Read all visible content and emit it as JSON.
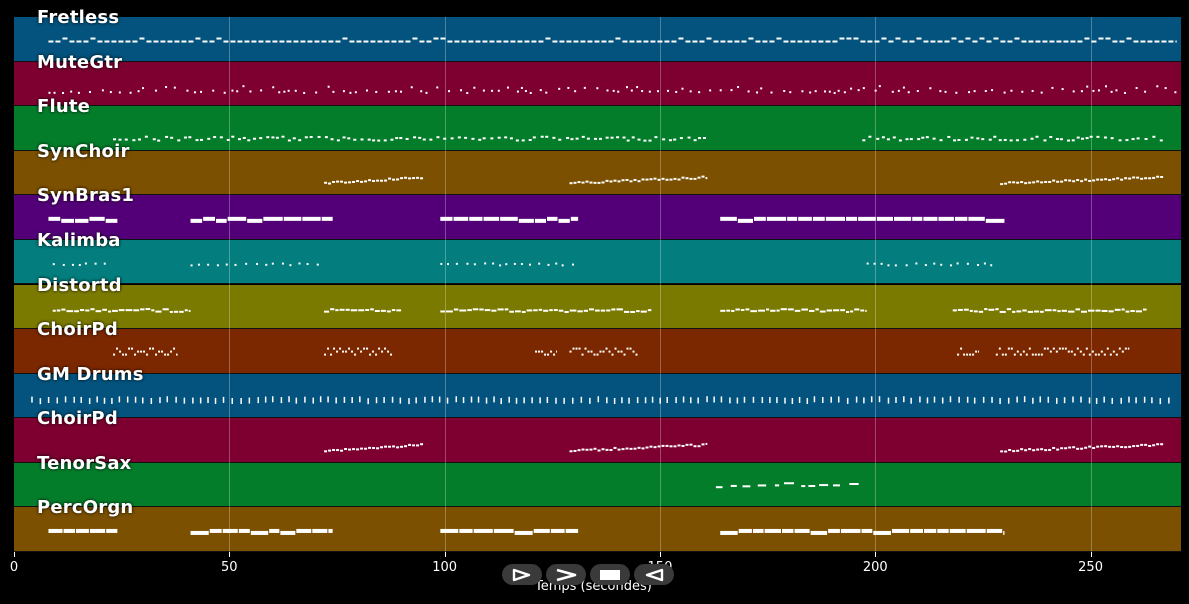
{
  "xaxis": {
    "label": "Temps (secondes)",
    "ticks": [
      "0",
      "50",
      "100",
      "150",
      "200",
      "250"
    ],
    "tick_values": [
      0,
      50,
      100,
      150,
      200,
      250
    ],
    "range": [
      0,
      271
    ]
  },
  "tracks": [
    {
      "name": "Fretless",
      "color": "#03537e",
      "pattern": "bass"
    },
    {
      "name": "MuteGtr",
      "color": "#7d0030",
      "pattern": "sparse"
    },
    {
      "name": "Flute",
      "color": "#047d2b",
      "pattern": "dense"
    },
    {
      "name": "SynChoir",
      "color": "#7b5000",
      "pattern": "phrase"
    },
    {
      "name": "SynBras1",
      "color": "#530078",
      "pattern": "long"
    },
    {
      "name": "Kalimba",
      "color": "#037d7d",
      "pattern": "dots"
    },
    {
      "name": "Distortd",
      "color": "#7b7a00",
      "pattern": "riff"
    },
    {
      "name": "ChoirPd",
      "color": "#7b2800",
      "pattern": "blocks"
    },
    {
      "name": "GM Drums",
      "color": "#03537e",
      "pattern": "drums"
    },
    {
      "name": "ChoirPd",
      "color": "#7d0030",
      "pattern": "phrase"
    },
    {
      "name": "TenorSax",
      "color": "#047d2b",
      "pattern": "sax"
    },
    {
      "name": "PercOrgn",
      "color": "#7b5000",
      "pattern": "long"
    }
  ],
  "note_color": "#ffffff",
  "transport": {
    "buttons": [
      {
        "name": "play-icon"
      },
      {
        "name": "fast-forward-icon"
      },
      {
        "name": "stop-icon"
      },
      {
        "name": "rewind-icon"
      }
    ]
  }
}
